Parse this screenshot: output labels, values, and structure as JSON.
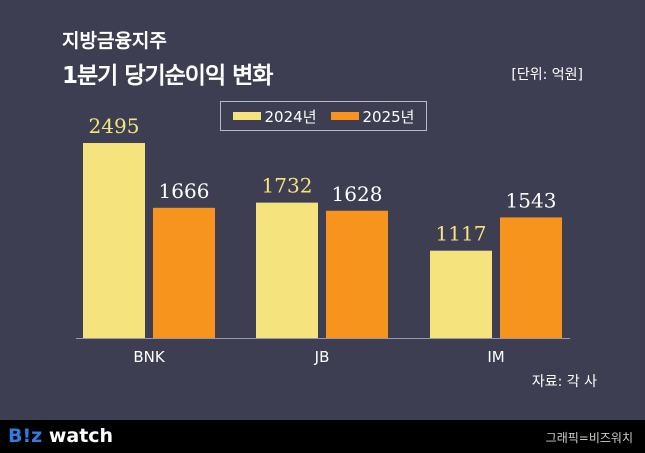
{
  "header": {
    "title_line1": "지방금융지주",
    "title_line2": "1분기 당기순이익 변화",
    "unit": "[단위: 억원]"
  },
  "source": "자료: 각 사",
  "footer": {
    "logo": "B!z watch",
    "logo_accent": "B!z",
    "logo_rest": " watch",
    "credit": "그래픽=비즈워치"
  },
  "colors": {
    "background": "#3e3e52",
    "series_2024": "#f5e47e",
    "series_2025": "#f7941d"
  },
  "chart_data": {
    "type": "bar",
    "categories": [
      "BNK",
      "JB",
      "IM"
    ],
    "series": [
      {
        "name": "2024년",
        "values": [
          2495,
          1732,
          1117
        ],
        "color": "#f5e47e"
      },
      {
        "name": "2025년",
        "values": [
          1666,
          1628,
          1543
        ],
        "color": "#f7941d"
      }
    ],
    "ylim": [
      0,
      2495
    ],
    "grid": false,
    "legend": "top-center"
  }
}
